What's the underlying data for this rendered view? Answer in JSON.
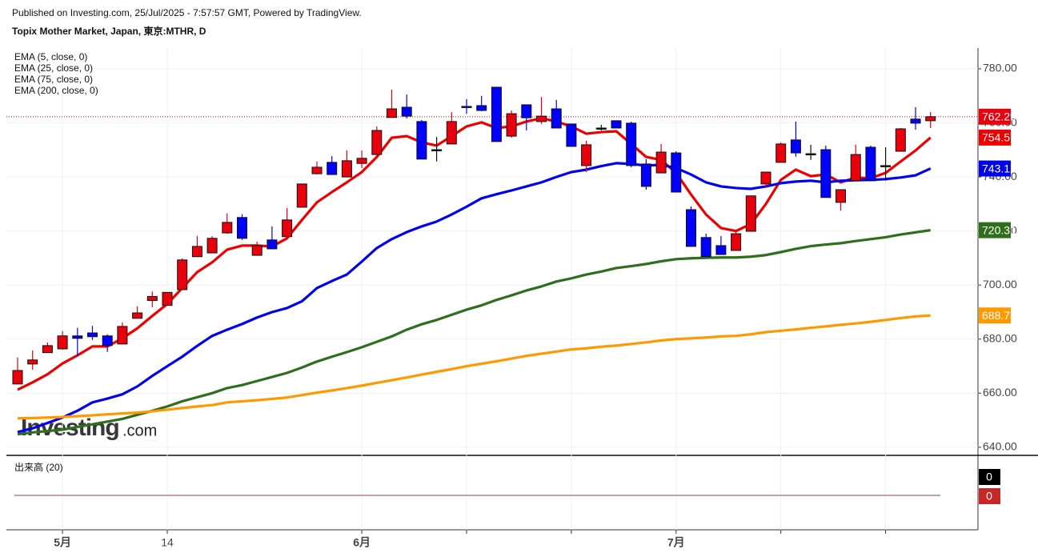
{
  "chart_data": {
    "type": "candlestick",
    "header": "Published on Investing.com, 25/Jul/2025 - 7:57:57 GMT, Powered by TradingView.",
    "title": "Topix Mother Market, Japan, 東京:MTHR, D",
    "watermark_main": "Investing",
    "watermark_suffix": ".com",
    "categories": [
      null,
      null,
      null,
      "5月",
      null,
      null,
      null,
      null,
      null,
      null,
      "14",
      null,
      null,
      null,
      null,
      null,
      null,
      null,
      null,
      null,
      null,
      null,
      null,
      "6月",
      null,
      null,
      null,
      null,
      null,
      null,
      null,
      null,
      null,
      null,
      null,
      null,
      null,
      null,
      null,
      null,
      null,
      null,
      null,
      null,
      "7月",
      null,
      null,
      null,
      null,
      null,
      null,
      null,
      null,
      null,
      null,
      null,
      null,
      null,
      null,
      null,
      null,
      null
    ],
    "xticks": [
      3,
      10,
      23,
      30,
      37,
      44,
      51,
      58
    ],
    "open": [
      663.4,
      670.8,
      675.0,
      676.4,
      681.2,
      682.3,
      681.2,
      678.2,
      687.7,
      694.3,
      692.5,
      698.3,
      710.5,
      711.9,
      719.3,
      725.0,
      711.0,
      716.7,
      717.9,
      728.8,
      741.2,
      745.4,
      740.0,
      745.0,
      748.3,
      762.0,
      765.8,
      760.5,
      750.1,
      752.2,
      766.1,
      766.4,
      773.2,
      755.1,
      766.7,
      760.5,
      765.2,
      759.6,
      744.2,
      758.1,
      760.8,
      759.9,
      744.8,
      741.5,
      748.9,
      727.9,
      717.6,
      714.6,
      712.8,
      719.9,
      737.4,
      745.4,
      753.7,
      748.6,
      750.1,
      730.6,
      738.6,
      751.0,
      744.2,
      749.5,
      761.4,
      760.8
    ],
    "high": [
      673.2,
      675.8,
      678.8,
      683.0,
      684.2,
      684.9,
      681.8,
      686.2,
      692.1,
      697.6,
      697.3,
      709.9,
      718.1,
      718.1,
      726.5,
      726.2,
      716.1,
      721.7,
      728.5,
      737.4,
      745.7,
      747.7,
      749.8,
      749.8,
      758.7,
      772.3,
      770.5,
      761.1,
      754.8,
      764.0,
      768.8,
      770.0,
      773.2,
      764.6,
      766.7,
      769.6,
      768.5,
      759.6,
      753.4,
      759.3,
      760.8,
      760.5,
      746.6,
      752.2,
      749.5,
      729.1,
      719.0,
      718.1,
      719.9,
      733.0,
      741.8,
      752.8,
      760.5,
      751.9,
      751.6,
      735.3,
      751.9,
      751.6,
      751.0,
      758.1,
      765.8,
      764.0
    ],
    "low": [
      663.4,
      668.7,
      675.0,
      676.1,
      673.8,
      679.7,
      675.3,
      678.2,
      687.7,
      691.8,
      692.5,
      698.3,
      710.5,
      711.9,
      719.0,
      716.7,
      711.0,
      713.4,
      717.9,
      728.8,
      740.9,
      740.9,
      740.0,
      743.3,
      748.3,
      762.0,
      761.6,
      746.6,
      745.7,
      752.2,
      763.4,
      764.3,
      753.1,
      754.5,
      757.2,
      759.6,
      758.1,
      751.3,
      741.8,
      757.2,
      758.1,
      743.6,
      735.3,
      741.5,
      734.4,
      714.3,
      710.5,
      711.3,
      712.8,
      719.9,
      735.9,
      745.4,
      747.5,
      746.3,
      732.4,
      727.6,
      738.6,
      738.6,
      738.6,
      749.5,
      757.5,
      758.1
    ],
    "close": [
      668.4,
      672.3,
      677.6,
      681.2,
      680.3,
      680.9,
      677.6,
      684.7,
      689.7,
      695.8,
      697.3,
      709.3,
      714.3,
      717.3,
      723.2,
      717.3,
      714.6,
      713.4,
      724.1,
      737.4,
      743.6,
      740.9,
      746.0,
      746.9,
      757.2,
      765.2,
      762.5,
      746.6,
      750.1,
      760.5,
      765.8,
      764.6,
      753.1,
      763.4,
      761.9,
      762.5,
      758.1,
      751.3,
      751.9,
      758.1,
      758.1,
      744.2,
      736.5,
      749.2,
      734.4,
      714.3,
      710.5,
      711.3,
      719.0,
      733.0,
      741.8,
      752.2,
      748.9,
      748.6,
      732.4,
      735.3,
      748.3,
      738.6,
      744.2,
      757.8,
      759.9,
      762.29
    ],
    "up_color": "#e8000d",
    "down_color": "#0000ff",
    "series": [
      {
        "name": "EMA (5, close, 0)",
        "color": "#ee0000",
        "values": [
          661.3,
          664,
          667,
          671,
          674,
          677.3,
          677.3,
          680.3,
          684,
          688.6,
          693,
          698.9,
          704.8,
          708.4,
          713.1,
          714.6,
          714.6,
          714.3,
          717.3,
          724.1,
          730.6,
          734.4,
          738,
          741.8,
          747.4,
          754.5,
          755.1,
          752.8,
          751.6,
          755.1,
          758.7,
          760.2,
          758.1,
          758.7,
          760.5,
          761.7,
          760.5,
          758.7,
          756,
          756.6,
          756.9,
          752.2,
          747.4,
          746.3,
          741.5,
          733.5,
          726.1,
          721.1,
          720,
          722.6,
          730,
          738.9,
          742.7,
          740.3,
          740.9,
          738,
          739.8,
          739.5,
          741.5,
          745.7,
          749.8,
          754.57
        ]
      },
      {
        "name": "EMA (25, close, 0)",
        "color": "#0000ee",
        "values": [
          645.6,
          647,
          649,
          651,
          653.5,
          656.6,
          658,
          659.6,
          662.5,
          666.4,
          670,
          673.5,
          677.5,
          681.2,
          683.5,
          685.6,
          688,
          690,
          691.5,
          694,
          698.9,
          701.5,
          703.9,
          708.7,
          713.7,
          717,
          719.6,
          721.7,
          723.5,
          726.1,
          729,
          732.1,
          733.6,
          735,
          736.5,
          738,
          740,
          741.8,
          742.7,
          744,
          745.1,
          744.8,
          744.2,
          744.5,
          743.3,
          740.9,
          738,
          736.5,
          735.9,
          735.6,
          736.5,
          737.7,
          738.3,
          738.6,
          738,
          738.6,
          738.8,
          738.9,
          739.2,
          739.8,
          740.6,
          743.12
        ]
      },
      {
        "name": "EMA (75, close, 0)",
        "color": "#2f6e1c",
        "values": [
          644.8,
          645.5,
          646,
          646.5,
          647.5,
          648.5,
          649.5,
          650.5,
          652,
          653.5,
          655.1,
          657,
          658.5,
          660,
          661.9,
          663,
          664.5,
          666,
          667.5,
          669.5,
          671.7,
          673.5,
          675.2,
          677,
          679,
          681,
          683.5,
          685.5,
          687.1,
          689,
          690.9,
          692.5,
          694.5,
          696.2,
          698,
          699.5,
          701.3,
          702.5,
          703.9,
          705,
          706.3,
          707,
          707.8,
          708.8,
          709.6,
          709.9,
          710.1,
          710.2,
          710.2,
          710.5,
          711.1,
          712.2,
          713.4,
          714.4,
          715,
          715.5,
          716.3,
          717,
          717.7,
          718.7,
          719.5,
          720.31
        ]
      },
      {
        "name": "EMA (200, close, 0)",
        "color": "#ff9900",
        "values": [
          650.7,
          650.8,
          651,
          651.2,
          651.5,
          651.8,
          652.2,
          652.5,
          652.8,
          653.3,
          653.9,
          654.5,
          655.1,
          655.6,
          656.6,
          657,
          657.4,
          657.9,
          658.4,
          659.3,
          660.2,
          661,
          661.9,
          662.8,
          663.8,
          664.8,
          665.8,
          666.9,
          667.9,
          668.9,
          670,
          670.9,
          671.8,
          672.8,
          673.8,
          674.6,
          675.4,
          676.2,
          676.6,
          677.2,
          677.6,
          678.2,
          678.8,
          679.5,
          680,
          680.3,
          680.6,
          681,
          681.2,
          681.8,
          682.6,
          683.1,
          683.6,
          684.2,
          684.7,
          685.3,
          685.8,
          686.4,
          687.1,
          687.8,
          688.4,
          688.75
        ]
      }
    ],
    "ylim": [
      637.0,
      787.7
    ],
    "yticks": [
      {
        "value": 640,
        "label": "640.00"
      },
      {
        "value": 660,
        "label": "660.00"
      },
      {
        "value": 680,
        "label": "680.00"
      },
      {
        "value": 700,
        "label": "700.00"
      },
      {
        "value": 720,
        "label": "720.00"
      },
      {
        "value": 740,
        "label": "740.00"
      },
      {
        "value": 760,
        "label": "760.00"
      },
      {
        "value": 780,
        "label": "780.00"
      }
    ],
    "grid": true,
    "volume": {
      "label": "出来高 (20)",
      "last_values": [
        0,
        0
      ]
    }
  }
}
